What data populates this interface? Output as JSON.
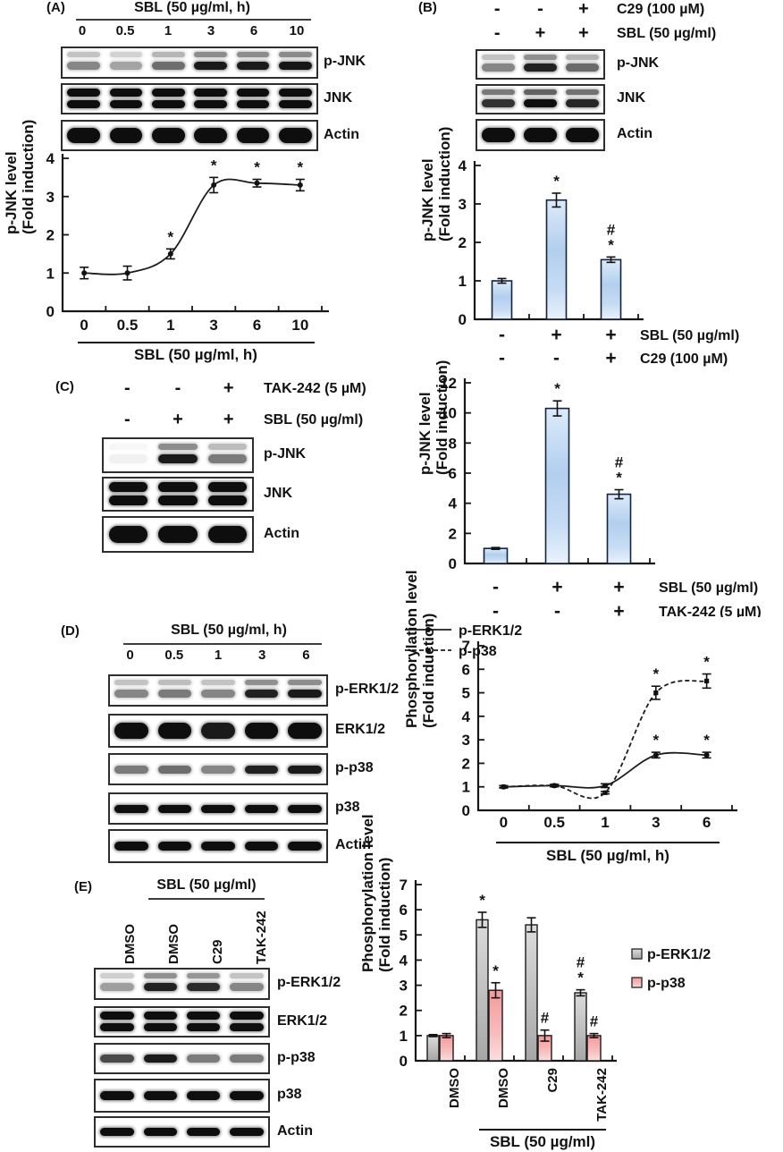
{
  "figure": {
    "panels": {
      "A": {
        "tag": "(A)",
        "header": "SBL (50 µg/ml, h)",
        "lanes": [
          "0",
          "0.5",
          "1",
          "3",
          "6",
          "10"
        ],
        "blots": [
          {
            "label": "p-JNK",
            "style": "double",
            "lanes": [
              0.5,
              0.38,
              0.6,
              0.95,
              0.95,
              0.97
            ]
          },
          {
            "label": "JNK",
            "style": "thickdouble",
            "lanes": [
              1,
              1,
              1,
              1,
              1,
              1
            ]
          },
          {
            "label": "Actin",
            "style": "thick",
            "lanes": [
              1,
              1,
              1,
              1,
              1,
              1
            ]
          }
        ]
      },
      "B": {
        "tag": "(B)",
        "treatments": [
          {
            "symbols": [
              "-",
              "-",
              "+"
            ],
            "label": "C29 (100 µM)"
          },
          {
            "symbols": [
              "-",
              "+",
              "+"
            ],
            "label": "SBL (50 µg/ml)"
          }
        ],
        "blots": [
          {
            "label": "p-JNK",
            "style": "double",
            "lanes": [
              0.5,
              0.92,
              0.62
            ]
          },
          {
            "label": "JNK",
            "style": "double2",
            "lanes": [
              0.85,
              1,
              0.9
            ]
          },
          {
            "label": "Actin",
            "style": "thick",
            "lanes": [
              1,
              1,
              1
            ]
          }
        ]
      },
      "C": {
        "tag": "(C)",
        "treatments": [
          {
            "symbols": [
              "-",
              "-",
              "+"
            ],
            "label": "TAK-242  (5 µM)"
          },
          {
            "symbols": [
              "-",
              "+",
              "+"
            ],
            "label": "SBL (50 µg/ml)"
          }
        ],
        "blots": [
          {
            "label": "p-JNK",
            "style": "double",
            "lanes": [
              0.06,
              0.95,
              0.55
            ]
          },
          {
            "label": "JNK",
            "style": "thickdouble",
            "lanes": [
              1,
              1,
              1
            ]
          },
          {
            "label": "Actin",
            "style": "thick",
            "lanes": [
              1,
              1,
              1
            ]
          }
        ]
      },
      "D": {
        "tag": "(D)",
        "header": "SBL (50 µg/ml, h)",
        "lanes": [
          "0",
          "0.5",
          "1",
          "3",
          "6"
        ],
        "blots": [
          {
            "label": "p-ERK1/2",
            "style": "double",
            "lanes": [
              0.5,
              0.55,
              0.5,
              0.92,
              0.95
            ]
          },
          {
            "label": "ERK1/2",
            "style": "thick",
            "lanes": [
              1,
              1,
              0.95,
              1,
              1
            ]
          },
          {
            "label": "p-p38",
            "style": "single",
            "lanes": [
              0.55,
              0.6,
              0.5,
              0.92,
              0.95
            ]
          },
          {
            "label": "p38",
            "style": "single",
            "lanes": [
              1,
              1,
              1,
              1,
              1
            ]
          },
          {
            "label": "Actin",
            "style": "single",
            "lanes": [
              1,
              1,
              1,
              1,
              1
            ]
          }
        ]
      },
      "E": {
        "tag": "(E)",
        "header": "SBL (50 µg/ml)",
        "lane_labels": [
          "DMSO",
          "DMSO",
          "C29",
          "TAK-242"
        ],
        "blots": [
          {
            "label": "p-ERK1/2",
            "style": "double",
            "lanes": [
              0.4,
              0.92,
              0.88,
              0.5
            ]
          },
          {
            "label": "ERK1/2",
            "style": "thickdouble",
            "lanes": [
              1,
              1,
              1,
              1
            ]
          },
          {
            "label": "p-p38",
            "style": "single",
            "lanes": [
              0.75,
              0.95,
              0.55,
              0.55
            ]
          },
          {
            "label": "p38",
            "style": "single",
            "lanes": [
              1,
              1,
              1,
              1
            ]
          },
          {
            "label": "Actin",
            "style": "single",
            "lanes": [
              1,
              1,
              1,
              1
            ]
          }
        ]
      }
    }
  },
  "chart_data": [
    {
      "id": "chart-a",
      "type": "line",
      "title": "",
      "categories": [
        "0",
        "0.5",
        "1",
        "3",
        "6",
        "10"
      ],
      "xlabel": "SBL (50 µg/ml, h)",
      "ylabel": "p-JNK level (Fold induction)",
      "ylabel_lines": [
        "p-JNK level",
        "(Fold induction)"
      ],
      "ylim": [
        0,
        4
      ],
      "yticks": [
        0,
        1,
        2,
        3,
        4
      ],
      "grid": false,
      "legend": "none",
      "series": [
        {
          "name": "p-JNK",
          "marker": "circle",
          "dash": false,
          "values": [
            1.0,
            1.0,
            1.5,
            3.3,
            3.35,
            3.3
          ],
          "errors": [
            0.15,
            0.18,
            0.13,
            0.2,
            0.1,
            0.15
          ],
          "annotations": [
            "",
            "",
            "*",
            "*",
            "*",
            "*"
          ]
        }
      ]
    },
    {
      "id": "chart-b",
      "type": "bar",
      "condition_rows": [
        {
          "symbols": [
            "-",
            "+",
            "+"
          ],
          "label": "SBL (50 µg/ml)"
        },
        {
          "symbols": [
            "-",
            "-",
            "+"
          ],
          "label": "C29 (100 µM)"
        }
      ],
      "ylabel": "p-JNK level (Fold induction)",
      "ylabel_lines": [
        "p-JNK level",
        "(Fold induction)"
      ],
      "ylim": [
        0,
        4
      ],
      "yticks": [
        0,
        1,
        2,
        3,
        4
      ],
      "bar_color": "blue",
      "values": [
        1.0,
        3.1,
        1.55
      ],
      "errors": [
        0.06,
        0.18,
        0.07
      ],
      "annotations": [
        "",
        "*",
        "#\n*"
      ]
    },
    {
      "id": "chart-c",
      "type": "bar",
      "condition_rows": [
        {
          "symbols": [
            "-",
            "+",
            "+"
          ],
          "label": "SBL (50 µg/ml)"
        },
        {
          "symbols": [
            "-",
            "-",
            "+"
          ],
          "label": "TAK-242  (5 µM)"
        }
      ],
      "ylabel": "p-JNK level (Fold induction)",
      "ylabel_lines": [
        "p-JNK level",
        "(Fold induction)"
      ],
      "ylim": [
        0,
        12
      ],
      "yticks": [
        0,
        2,
        4,
        6,
        8,
        10,
        12
      ],
      "bar_color": "blue",
      "values": [
        1.0,
        10.3,
        4.6
      ],
      "errors": [
        0.06,
        0.5,
        0.3
      ],
      "annotations": [
        "",
        "*",
        "#\n*"
      ]
    },
    {
      "id": "chart-d",
      "type": "line",
      "categories": [
        "0",
        "0.5",
        "1",
        "3",
        "6"
      ],
      "xlabel": "SBL (50 µg/ml, h)",
      "ylabel": "Phosphorylation level (Fold induction)",
      "ylabel_lines": [
        "Phosphorylation level",
        "(Fold induction)"
      ],
      "ylim": [
        0,
        7
      ],
      "yticks": [
        0,
        1,
        2,
        3,
        4,
        5,
        6,
        7
      ],
      "grid": false,
      "legend": "inside-top-left",
      "series": [
        {
          "name": "p-ERK1/2",
          "marker": "circle",
          "dash": false,
          "values": [
            1.0,
            1.05,
            1.05,
            2.35,
            2.35
          ],
          "errors": [
            0.05,
            0.05,
            0.08,
            0.12,
            0.12
          ],
          "annotations": [
            "",
            "",
            "",
            "*",
            "*"
          ]
        },
        {
          "name": "p-p38",
          "marker": "square",
          "dash": true,
          "values": [
            1.0,
            1.05,
            0.75,
            5.0,
            5.5
          ],
          "errors": [
            0.04,
            0.05,
            0.05,
            0.28,
            0.3
          ],
          "annotations": [
            "",
            "",
            "",
            "*",
            "*"
          ]
        }
      ]
    },
    {
      "id": "chart-e",
      "type": "grouped-bar",
      "categories": [
        "DMSO",
        "DMSO",
        "C29",
        "TAK-242"
      ],
      "xlabel": "SBL (50 µg/ml)",
      "xlabel_span": "last3",
      "ylabel": "Phosphorylation level (Fold induction)",
      "ylabel_lines": [
        "Phosphorylation level",
        "(Fold induction)"
      ],
      "ylim": [
        0,
        7
      ],
      "yticks": [
        0,
        1,
        2,
        3,
        4,
        5,
        6,
        7
      ],
      "legend": "right",
      "series": [
        {
          "name": "p-ERK1/2",
          "color": "gray",
          "values": [
            1.0,
            5.6,
            5.4,
            2.7
          ],
          "errors": [
            0.04,
            0.3,
            0.28,
            0.12
          ],
          "annotations": [
            "",
            "*",
            "",
            "#\n*"
          ]
        },
        {
          "name": "p-p38",
          "color": "pink",
          "values": [
            1.0,
            2.8,
            1.0,
            1.0
          ],
          "errors": [
            0.08,
            0.3,
            0.22,
            0.08
          ],
          "annotations": [
            "",
            "*",
            "#",
            "#"
          ]
        }
      ]
    }
  ],
  "colors": {
    "axis": "#161616",
    "band": "#101010",
    "bar_blue_light": "#dcebf9",
    "bar_blue_mid": "#b2cfee",
    "bar_gray_light": "#dcdcdc",
    "bar_gray_dark": "#a6a6a6",
    "bar_pink_strong": "#f49a9c",
    "bar_pink_light": "#fcdede",
    "bar_outline": "#14233c"
  }
}
